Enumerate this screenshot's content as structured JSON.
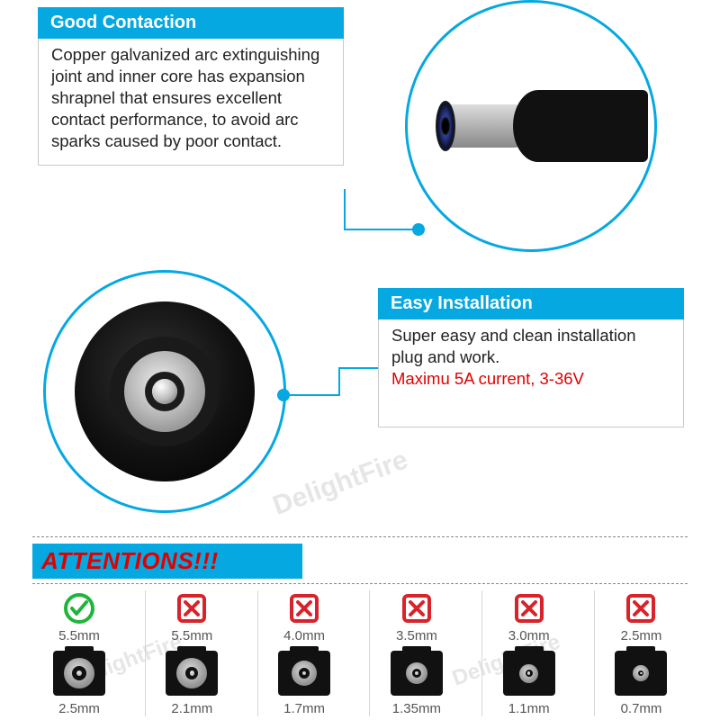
{
  "colors": {
    "header_bg": "#05a8e0",
    "header_text": "#ffffff",
    "body_text": "#222222",
    "border": "#c9c9c9",
    "leader": "#05a8e0",
    "attention_bg": "#05a8e0",
    "attention_text": "#e10000",
    "highlight_text": "#e10000",
    "divider": "#888888",
    "grid_divider": "#d7d7d7",
    "ok_green": "#1fb53b",
    "no_red": "#d8232a"
  },
  "section1": {
    "title": "Good Contaction",
    "body": "Copper galvanized arc extinguishing joint and inner core has expansion shrapnel that ensures excellent contact performance, to avoid arc sparks caused by poor contact."
  },
  "section2": {
    "title": "Easy Installation",
    "body": "Super easy and clean installation plug and work.",
    "highlight": "Maximu 5A current, 3-36V"
  },
  "attentions_label": "ATTENTIONS!!!",
  "callout1_image": "dc-barrel-plug-side-view",
  "callout2_image": "dc-barrel-plug-front-face",
  "compat_table": {
    "columns": [
      {
        "outer_mm": "5.5mm",
        "inner_mm": "2.5mm",
        "ok": true,
        "face_d": 34,
        "pin_d": 16
      },
      {
        "outer_mm": "5.5mm",
        "inner_mm": "2.1mm",
        "ok": false,
        "face_d": 34,
        "pin_d": 14
      },
      {
        "outer_mm": "4.0mm",
        "inner_mm": "1.7mm",
        "ok": false,
        "face_d": 28,
        "pin_d": 12
      },
      {
        "outer_mm": "3.5mm",
        "inner_mm": "1.35mm",
        "ok": false,
        "face_d": 24,
        "pin_d": 10
      },
      {
        "outer_mm": "3.0mm",
        "inner_mm": "1.1mm",
        "ok": false,
        "face_d": 21,
        "pin_d": 8
      },
      {
        "outer_mm": "2.5mm",
        "inner_mm": "0.7mm",
        "ok": false,
        "face_d": 18,
        "pin_d": 6
      }
    ]
  },
  "watermark_text": "DelightFire"
}
